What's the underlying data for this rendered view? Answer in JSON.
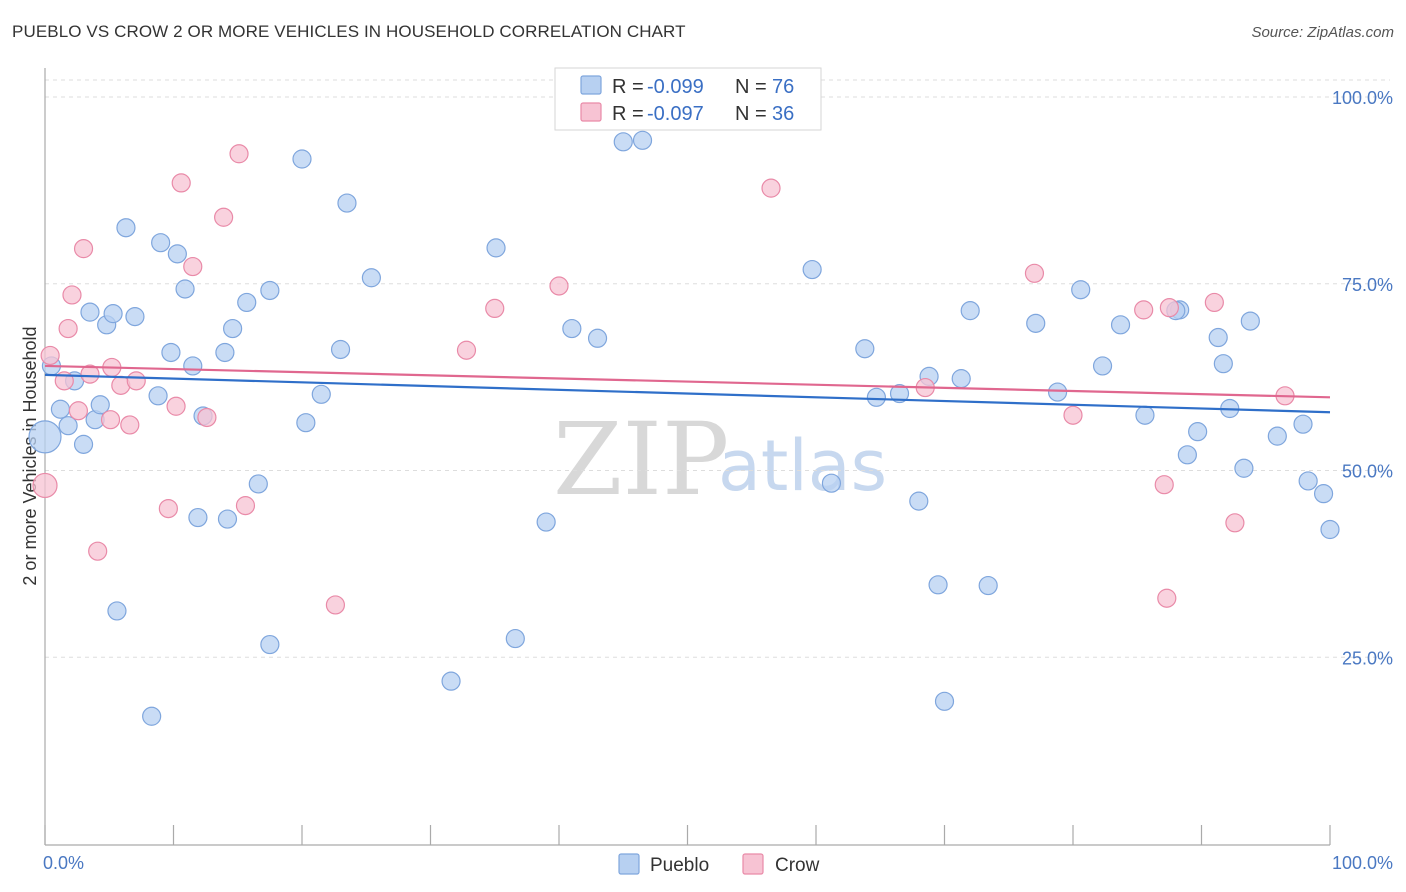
{
  "title": "PUEBLO VS CROW 2 OR MORE VEHICLES IN HOUSEHOLD CORRELATION CHART",
  "source": "Source: ZipAtlas.com",
  "watermark": {
    "zip": "ZIP",
    "atlas": "atlas"
  },
  "colors": {
    "pueblo_fill": "#b7d0f1",
    "pueblo_stroke": "#7fa6dd",
    "pueblo_line": "#2f6fc9",
    "crow_fill": "#f7c3d3",
    "crow_stroke": "#e98aa8",
    "crow_line": "#e0678f",
    "grid": "#dddddd",
    "axis": "#aaaaaa"
  },
  "legend": {
    "rows": [
      {
        "r_label": "R = ",
        "r_value": "-0.099",
        "n_label": "N = ",
        "n_value": "76"
      },
      {
        "r_label": "R = ",
        "r_value": "-0.097",
        "n_label": "N = ",
        "n_value": "36"
      }
    ]
  },
  "chart_data": {
    "type": "scatter",
    "title": "PUEBLO VS CROW 2 OR MORE VEHICLES IN HOUSEHOLD CORRELATION CHART",
    "xlabel": "",
    "ylabel": "2 or more Vehicles in Household",
    "xlim": [
      0,
      100
    ],
    "ylim": [
      0,
      100
    ],
    "x_tick_labels": [
      "0.0%",
      "100.0%"
    ],
    "y_ticks": [
      25,
      50,
      75,
      100
    ],
    "y_tick_labels": [
      "25.0%",
      "50.0%",
      "75.0%",
      "100.0%"
    ],
    "grid": true,
    "series": [
      {
        "name": "Pueblo",
        "trend": {
          "x": [
            0,
            100
          ],
          "y": [
            62.8,
            57.8
          ]
        },
        "points": [
          {
            "x": 0.5,
            "y": 64.0
          },
          {
            "x": 1.2,
            "y": 58.2
          },
          {
            "x": 1.8,
            "y": 56.0
          },
          {
            "x": 2.3,
            "y": 62.0
          },
          {
            "x": 3.0,
            "y": 53.5
          },
          {
            "x": 3.5,
            "y": 71.2
          },
          {
            "x": 3.9,
            "y": 56.8
          },
          {
            "x": 4.3,
            "y": 58.8
          },
          {
            "x": 4.8,
            "y": 69.5
          },
          {
            "x": 5.3,
            "y": 71.0
          },
          {
            "x": 5.6,
            "y": 31.2
          },
          {
            "x": 6.3,
            "y": 82.5
          },
          {
            "x": 7.0,
            "y": 70.6
          },
          {
            "x": 8.3,
            "y": 17.1
          },
          {
            "x": 8.8,
            "y": 60.0
          },
          {
            "x": 9.0,
            "y": 80.5
          },
          {
            "x": 9.8,
            "y": 65.8
          },
          {
            "x": 10.3,
            "y": 79.0
          },
          {
            "x": 10.9,
            "y": 74.3
          },
          {
            "x": 11.5,
            "y": 64.0
          },
          {
            "x": 11.9,
            "y": 43.7
          },
          {
            "x": 12.3,
            "y": 57.3
          },
          {
            "x": 14.2,
            "y": 43.5
          },
          {
            "x": 14.0,
            "y": 65.8
          },
          {
            "x": 14.6,
            "y": 69.0
          },
          {
            "x": 15.7,
            "y": 72.5
          },
          {
            "x": 16.6,
            "y": 48.2
          },
          {
            "x": 17.5,
            "y": 74.1
          },
          {
            "x": 17.5,
            "y": 26.7
          },
          {
            "x": 20.0,
            "y": 91.7
          },
          {
            "x": 20.3,
            "y": 56.4
          },
          {
            "x": 21.5,
            "y": 60.2
          },
          {
            "x": 23.0,
            "y": 66.2
          },
          {
            "x": 23.5,
            "y": 85.8
          },
          {
            "x": 25.4,
            "y": 75.8
          },
          {
            "x": 31.6,
            "y": 21.8
          },
          {
            "x": 35.1,
            "y": 79.8
          },
          {
            "x": 36.6,
            "y": 27.5
          },
          {
            "x": 39.0,
            "y": 43.1
          },
          {
            "x": 41.0,
            "y": 69.0
          },
          {
            "x": 43.0,
            "y": 67.7
          },
          {
            "x": 45.0,
            "y": 94.0
          },
          {
            "x": 46.5,
            "y": 94.2
          },
          {
            "x": 59.7,
            "y": 76.9
          },
          {
            "x": 61.2,
            "y": 48.3
          },
          {
            "x": 63.8,
            "y": 66.3
          },
          {
            "x": 64.7,
            "y": 59.8
          },
          {
            "x": 66.5,
            "y": 60.3
          },
          {
            "x": 68.0,
            "y": 45.9
          },
          {
            "x": 68.8,
            "y": 62.6
          },
          {
            "x": 69.5,
            "y": 34.7
          },
          {
            "x": 70.0,
            "y": 19.1
          },
          {
            "x": 71.3,
            "y": 62.3
          },
          {
            "x": 72.0,
            "y": 71.4
          },
          {
            "x": 73.4,
            "y": 34.6
          },
          {
            "x": 77.1,
            "y": 69.7
          },
          {
            "x": 78.8,
            "y": 60.5
          },
          {
            "x": 80.6,
            "y": 74.2
          },
          {
            "x": 82.3,
            "y": 64.0
          },
          {
            "x": 83.7,
            "y": 69.5
          },
          {
            "x": 85.6,
            "y": 57.4
          },
          {
            "x": 88.3,
            "y": 71.5
          },
          {
            "x": 88.9,
            "y": 52.1
          },
          {
            "x": 89.7,
            "y": 55.2
          },
          {
            "x": 91.3,
            "y": 67.8
          },
          {
            "x": 91.7,
            "y": 64.3
          },
          {
            "x": 92.2,
            "y": 58.3
          },
          {
            "x": 93.3,
            "y": 50.3
          },
          {
            "x": 93.8,
            "y": 70.0
          },
          {
            "x": 95.9,
            "y": 54.6
          },
          {
            "x": 97.9,
            "y": 56.2
          },
          {
            "x": 98.3,
            "y": 48.6
          },
          {
            "x": 99.5,
            "y": 46.9
          },
          {
            "x": 100.0,
            "y": 42.1
          },
          {
            "x": 88.0,
            "y": 71.4
          },
          {
            "x": 0.0,
            "y": 54.5
          }
        ]
      },
      {
        "name": "Crow",
        "trend": {
          "x": [
            0,
            100
          ],
          "y": [
            64.0,
            59.8
          ]
        },
        "points": [
          {
            "x": 0.4,
            "y": 65.4
          },
          {
            "x": 1.5,
            "y": 62.0
          },
          {
            "x": 1.8,
            "y": 69.0
          },
          {
            "x": 2.1,
            "y": 73.5
          },
          {
            "x": 2.6,
            "y": 58.0
          },
          {
            "x": 3.0,
            "y": 79.7
          },
          {
            "x": 3.5,
            "y": 62.9
          },
          {
            "x": 4.1,
            "y": 39.2
          },
          {
            "x": 5.1,
            "y": 56.8
          },
          {
            "x": 5.2,
            "y": 63.8
          },
          {
            "x": 5.9,
            "y": 61.4
          },
          {
            "x": 6.6,
            "y": 56.1
          },
          {
            "x": 7.1,
            "y": 62.0
          },
          {
            "x": 9.6,
            "y": 44.9
          },
          {
            "x": 10.2,
            "y": 58.6
          },
          {
            "x": 10.6,
            "y": 88.5
          },
          {
            "x": 11.5,
            "y": 77.3
          },
          {
            "x": 12.6,
            "y": 57.1
          },
          {
            "x": 13.9,
            "y": 83.9
          },
          {
            "x": 15.1,
            "y": 92.4
          },
          {
            "x": 15.6,
            "y": 45.3
          },
          {
            "x": 22.6,
            "y": 32.0
          },
          {
            "x": 32.8,
            "y": 66.1
          },
          {
            "x": 35.0,
            "y": 71.7
          },
          {
            "x": 40.0,
            "y": 74.7
          },
          {
            "x": 56.5,
            "y": 87.8
          },
          {
            "x": 68.5,
            "y": 61.1
          },
          {
            "x": 77.0,
            "y": 76.4
          },
          {
            "x": 80.0,
            "y": 57.4
          },
          {
            "x": 85.5,
            "y": 71.5
          },
          {
            "x": 87.1,
            "y": 48.1
          },
          {
            "x": 87.5,
            "y": 71.8
          },
          {
            "x": 87.3,
            "y": 32.9
          },
          {
            "x": 91.0,
            "y": 72.5
          },
          {
            "x": 92.6,
            "y": 43.0
          },
          {
            "x": 96.5,
            "y": 60.0
          }
        ]
      }
    ],
    "legend": [
      "Pueblo",
      "Crow"
    ]
  }
}
